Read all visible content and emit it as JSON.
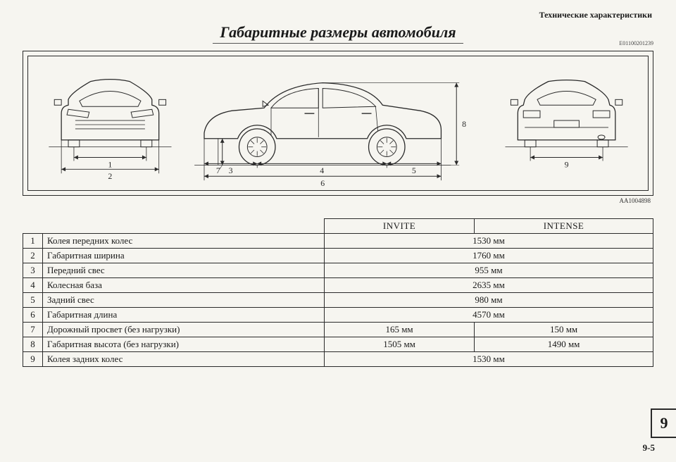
{
  "header": "Технические характеристики",
  "title": "Габаритные размеры автомобиля",
  "refTop": "E01100201239",
  "refDiagram": "AA1004898",
  "diagram": {
    "stroke": "#2a2a2a",
    "dimLabels": [
      "1",
      "2",
      "3",
      "4",
      "5",
      "6",
      "7",
      "8",
      "9"
    ]
  },
  "table": {
    "headers": [
      "INVITE",
      "INTENSE"
    ],
    "rows": [
      {
        "n": "1",
        "label": "Колея передних колес",
        "span": true,
        "v": "1530 мм"
      },
      {
        "n": "2",
        "label": "Габаритная ширина",
        "span": true,
        "v": "1760 мм"
      },
      {
        "n": "3",
        "label": "Передний свес",
        "span": true,
        "v": "955 мм"
      },
      {
        "n": "4",
        "label": "Колесная база",
        "span": true,
        "v": "2635 мм"
      },
      {
        "n": "5",
        "label": "Задний свес",
        "span": true,
        "v": "980 мм"
      },
      {
        "n": "6",
        "label": "Габаритная длина",
        "span": true,
        "v": "4570 мм"
      },
      {
        "n": "7",
        "label": "Дорожный просвет (без нагрузки)",
        "span": false,
        "v1": "165 мм",
        "v2": "150 мм"
      },
      {
        "n": "8",
        "label": "Габаритная высота (без нагрузки)",
        "span": false,
        "v1": "1505 мм",
        "v2": "1490 мм"
      },
      {
        "n": "9",
        "label": "Колея задних колес",
        "span": true,
        "v": "1530 мм"
      }
    ]
  },
  "pageTab": "9",
  "pageFooter": "9-5"
}
